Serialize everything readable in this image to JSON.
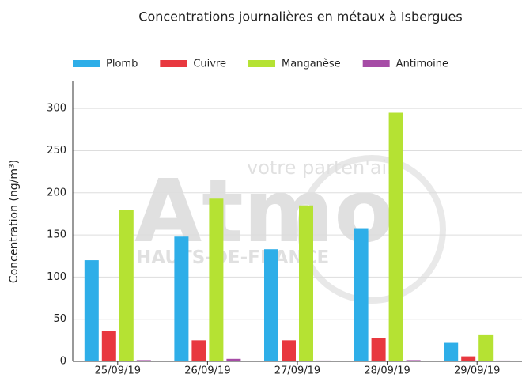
{
  "chart_data": {
    "type": "bar",
    "title": "Concentrations journalières en métaux à Isbergues",
    "ylabel": "Concentration (ng/m³)",
    "categories": [
      "25/09/19",
      "26/09/19",
      "27/09/19",
      "28/09/19",
      "29/09/19"
    ],
    "series": [
      {
        "name": "Plomb",
        "color": "#2eaee8",
        "values": [
          120,
          148,
          133,
          158,
          22
        ]
      },
      {
        "name": "Cuivre",
        "color": "#e8383f",
        "values": [
          36,
          25,
          25,
          28,
          6
        ]
      },
      {
        "name": "Manganèse",
        "color": "#b5e233",
        "values": [
          180,
          193,
          185,
          295,
          32
        ]
      },
      {
        "name": "Antimoine",
        "color": "#a64ca6",
        "values": [
          1.5,
          3,
          1,
          1.5,
          1
        ]
      }
    ],
    "ylim": [
      0,
      333
    ],
    "yticks": [
      0,
      50,
      100,
      150,
      200,
      250,
      300
    ],
    "grid": true,
    "legend": "top",
    "watermark": {
      "brand": "Atmo",
      "region": "HAUTS-DE-FRANCE",
      "slogan": "votre parten'air"
    }
  }
}
